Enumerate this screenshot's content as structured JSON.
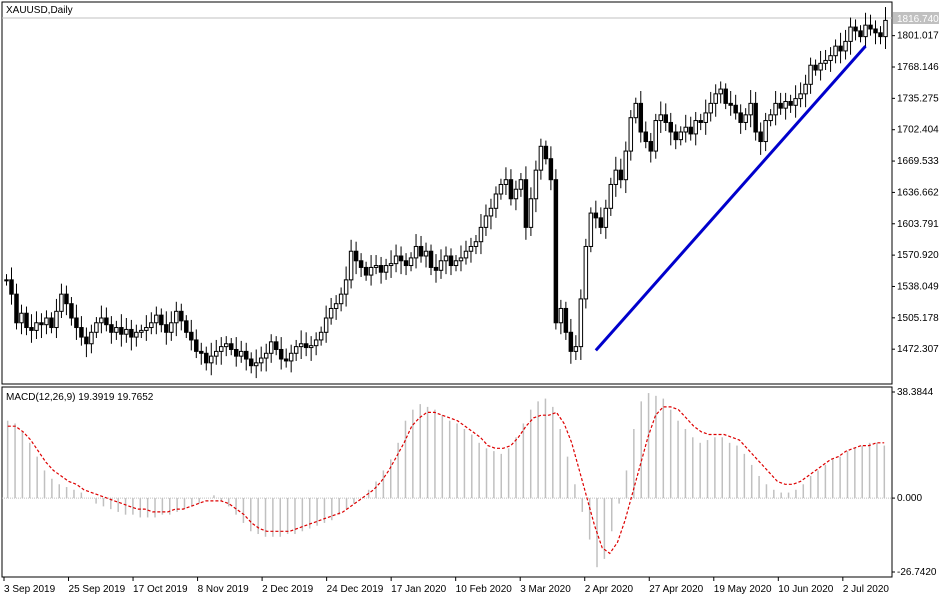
{
  "chart_data": [
    {
      "type": "candlestick",
      "symbol_label": "XAUUSD,Daily",
      "current_price": "1816.740",
      "ylim": [
        1440,
        1830
      ],
      "y_ticks": [
        "1801.017",
        "1768.146",
        "1735.275",
        "1702.404",
        "1669.533",
        "1636.662",
        "1603.791",
        "1570.920",
        "1538.049",
        "1505.178",
        "1472.307"
      ],
      "x_ticks": [
        "3 Sep 2019",
        "25 Sep 2019",
        "17 Oct 2019",
        "8 Nov 2019",
        "2 Dec 2019",
        "24 Dec 2019",
        "17 Jan 2020",
        "10 Feb 2020",
        "3 Mar 2020",
        "2 Apr 2020",
        "27 Apr 2020",
        "19 May 2020",
        "10 Jun 2020",
        "2 Jul 2020"
      ],
      "close_series": [
        1545,
        1530,
        1500,
        1510,
        1495,
        1492,
        1500,
        1498,
        1505,
        1495,
        1512,
        1530,
        1520,
        1505,
        1495,
        1485,
        1478,
        1490,
        1500,
        1505,
        1498,
        1490,
        1495,
        1488,
        1493,
        1485,
        1490,
        1492,
        1495,
        1500,
        1508,
        1498,
        1490,
        1500,
        1512,
        1502,
        1490,
        1482,
        1470,
        1468,
        1458,
        1465,
        1470,
        1475,
        1478,
        1472,
        1465,
        1470,
        1462,
        1455,
        1458,
        1463,
        1468,
        1480,
        1472,
        1462,
        1460,
        1468,
        1475,
        1478,
        1474,
        1476,
        1482,
        1490,
        1505,
        1515,
        1520,
        1530,
        1545,
        1575,
        1565,
        1558,
        1550,
        1558,
        1560,
        1553,
        1560,
        1562,
        1570,
        1565,
        1560,
        1568,
        1580,
        1570,
        1575,
        1558,
        1555,
        1565,
        1570,
        1560,
        1565,
        1568,
        1575,
        1580,
        1585,
        1600,
        1612,
        1620,
        1635,
        1645,
        1650,
        1630,
        1640,
        1650,
        1600,
        1630,
        1660,
        1685,
        1672,
        1650,
        1500,
        1515,
        1490,
        1470,
        1475,
        1525,
        1580,
        1615,
        1610,
        1600,
        1620,
        1645,
        1660,
        1650,
        1680,
        1715,
        1730,
        1700,
        1690,
        1680,
        1712,
        1718,
        1710,
        1700,
        1692,
        1700,
        1705,
        1698,
        1712,
        1710,
        1720,
        1730,
        1740,
        1745,
        1730,
        1728,
        1720,
        1710,
        1718,
        1730,
        1700,
        1690,
        1712,
        1718,
        1730,
        1725,
        1732,
        1728,
        1735,
        1740,
        1750,
        1770,
        1765,
        1772,
        1775,
        1780,
        1790,
        1785,
        1795,
        1810,
        1806,
        1800,
        1812,
        1808,
        1804,
        1800,
        1817
      ],
      "trendline": {
        "from": [
          1471,
          "start"
        ],
        "to": [
          1790,
          "end"
        ],
        "color": "#0000cc"
      }
    },
    {
      "type": "macd",
      "label": "MACD(12,26,9) 19.3919 19.7652",
      "ylim": [
        -26.742,
        38.3844
      ],
      "y_ticks": [
        "38.3844",
        "0.000",
        "-26.7420"
      ],
      "histogram_color": "#c0c0c0",
      "signal_color": "#dd0000",
      "histogram": [
        28,
        27,
        24,
        20,
        15,
        10,
        7,
        5,
        4,
        3,
        2,
        0,
        -2,
        -3,
        -4,
        -5,
        -6,
        -6,
        -7,
        -7,
        -7,
        -6,
        -6,
        -5,
        -4,
        -3,
        -2,
        0,
        1,
        -1,
        -3,
        -6,
        -9,
        -12,
        -13,
        -14,
        -14,
        -14,
        -13,
        -13,
        -12,
        -11,
        -10,
        -9,
        -8,
        -6,
        -4,
        -2,
        0,
        3,
        6,
        10,
        14,
        20,
        28,
        32,
        34,
        33,
        32,
        30,
        28,
        27,
        25,
        23,
        20,
        18,
        17,
        16,
        18,
        22,
        27,
        32,
        35,
        36,
        33,
        25,
        15,
        5,
        -5,
        -15,
        -25,
        -22,
        -12,
        -2,
        10,
        25,
        35,
        38,
        37,
        36,
        32,
        28,
        25,
        22,
        20,
        21,
        22,
        22,
        20,
        19,
        16,
        12,
        8,
        5,
        3,
        2,
        2,
        3,
        5,
        8,
        10,
        12,
        14,
        15,
        17,
        18,
        19,
        20,
        20,
        19
      ],
      "signal": [
        26,
        26,
        24,
        21,
        17,
        13,
        10,
        8,
        6,
        5,
        3,
        2,
        1,
        0,
        -1,
        -2,
        -3,
        -4,
        -4,
        -5,
        -5,
        -5,
        -4,
        -4,
        -3,
        -2,
        -1,
        -1,
        -1,
        -2,
        -4,
        -6,
        -9,
        -11,
        -12,
        -12,
        -12,
        -12,
        -11,
        -10,
        -9,
        -8,
        -7,
        -6,
        -5,
        -3,
        -1,
        1,
        3,
        6,
        10,
        15,
        20,
        26,
        29,
        31,
        31,
        30,
        29,
        28,
        26,
        24,
        22,
        19,
        18,
        18,
        19,
        22,
        26,
        29,
        30,
        30,
        31,
        27,
        20,
        10,
        0,
        -10,
        -18,
        -20,
        -16,
        -8,
        2,
        12,
        22,
        30,
        33,
        33,
        32,
        29,
        26,
        24,
        23,
        23,
        23,
        22,
        21,
        18,
        15,
        12,
        9,
        6,
        5,
        5,
        6,
        8,
        10,
        12,
        14,
        15,
        17,
        18,
        19,
        19,
        20,
        20
      ]
    }
  ]
}
